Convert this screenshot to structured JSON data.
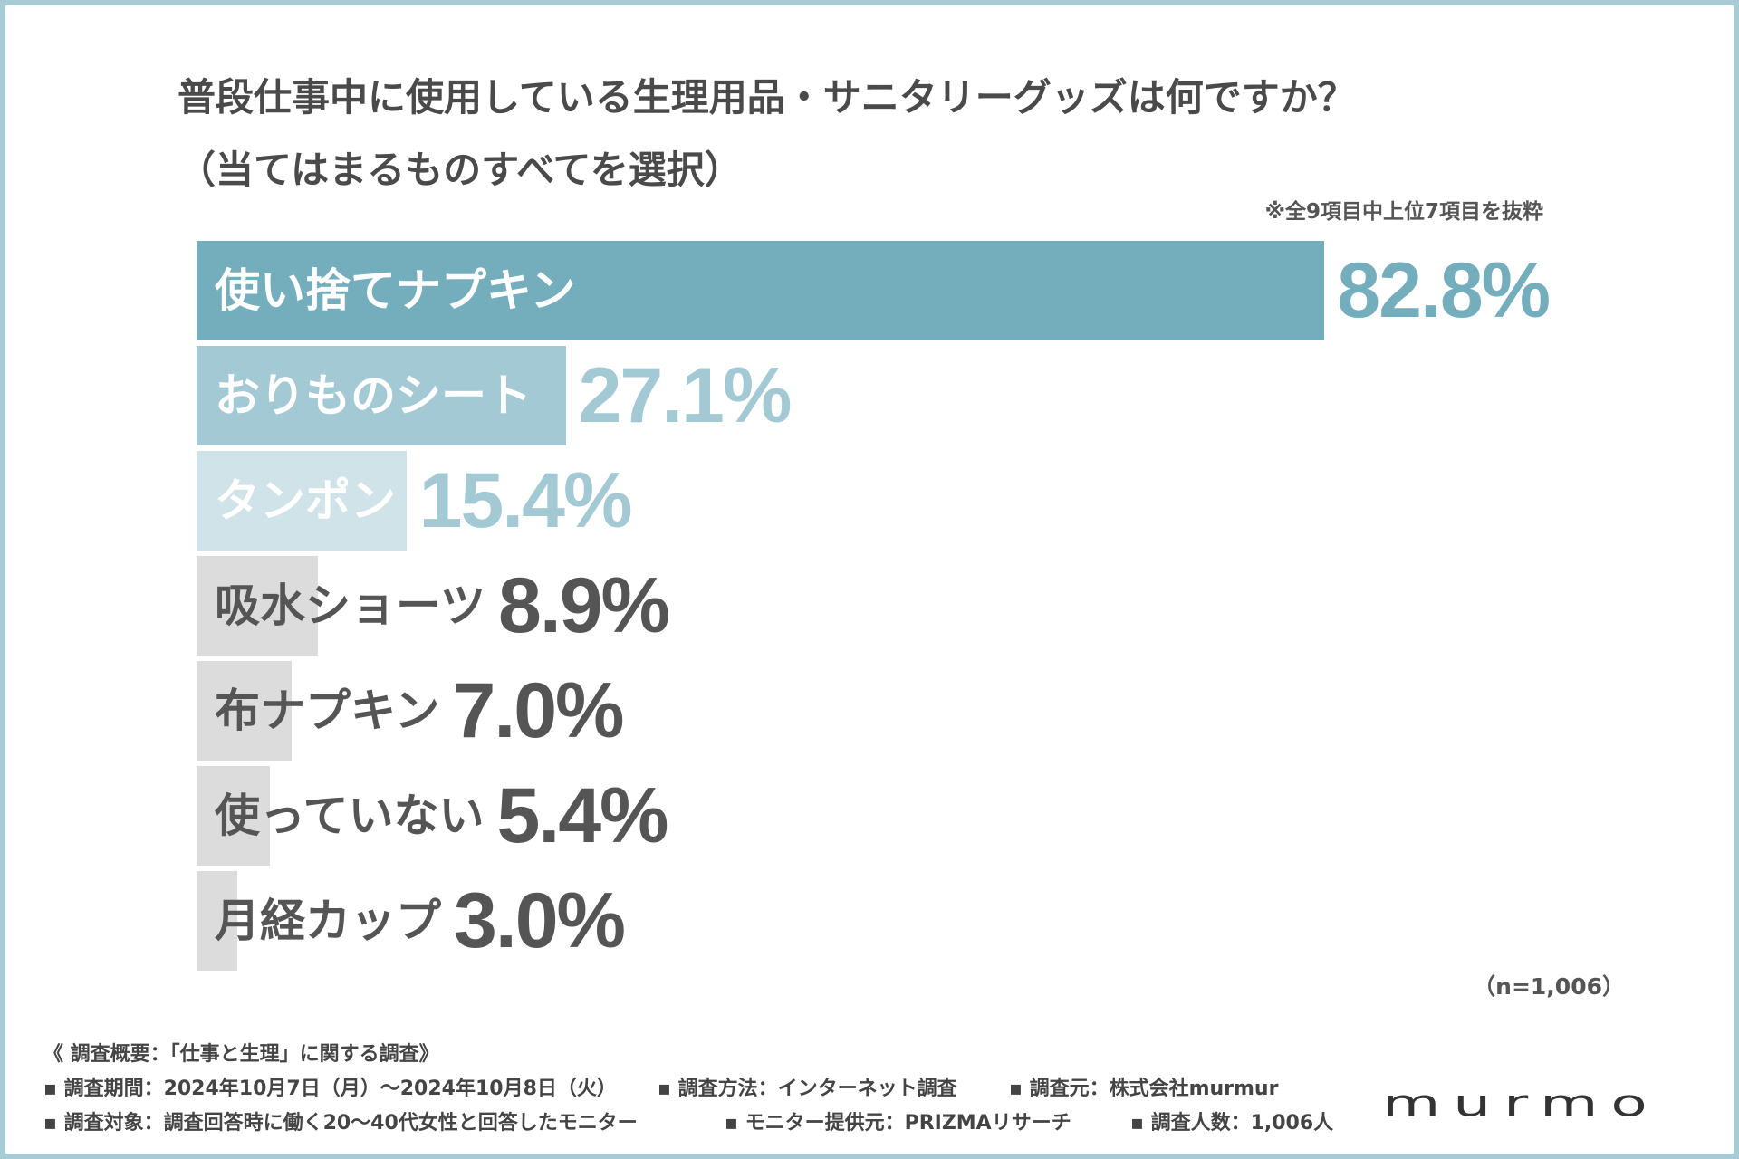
{
  "chart_data": {
    "type": "bar",
    "orientation": "horizontal",
    "title_line1": "普段仕事中に使用している生理用品・サニタリーグッズは何ですか？",
    "title_line2": "（当てはまるものすべてを選択）",
    "note": "※全9項目中上位7項目を抜粋",
    "categories": [
      "使い捨てナプキン",
      "おりものシート",
      "タンポン",
      "吸水ショーツ",
      "布ナプキン",
      "使っていない",
      "月経カップ"
    ],
    "values": [
      82.8,
      27.1,
      15.4,
      8.9,
      7.0,
      5.4,
      3.0
    ],
    "value_labels": [
      "82.8%",
      "27.1%",
      "15.4%",
      "8.9%",
      "7.0%",
      "5.4%",
      "3.0%"
    ],
    "bar_colors": [
      "#74aebc",
      "#a3c9d4",
      "#d0e3e9",
      "#dcdcdc",
      "#dcdcdc",
      "#dcdcdc",
      "#dcdcdc"
    ],
    "label_colors": [
      "#ffffff",
      "#ffffff",
      "#ffffff",
      "#555555",
      "#555555",
      "#555555",
      "#555555"
    ],
    "value_colors": [
      "#74aebc",
      "#a3c9d4",
      "#a3c9d4",
      "#555555",
      "#555555",
      "#555555",
      "#555555"
    ],
    "xlim": [
      0,
      100
    ],
    "xlabel": "",
    "ylabel": "",
    "sample_note": "（n=1,006）"
  },
  "footer": {
    "summary": "《 調査概要：「仕事と生理」に関する調査》",
    "period": "▪ 調査期間：2024年10月7日（月）〜2024年10月8日（火）",
    "method": "▪ 調査方法：インターネット調査",
    "organizer": "▪ 調査元：株式会社murmur",
    "target": "▪ 調査対象：調査回答時に働く20〜40代女性と回答したモニター",
    "panel": "▪ モニター提供元：PRIZMAリサーチ",
    "respondents": "▪ 調査人数：1,006人"
  },
  "logo": {
    "text": "murmo"
  }
}
